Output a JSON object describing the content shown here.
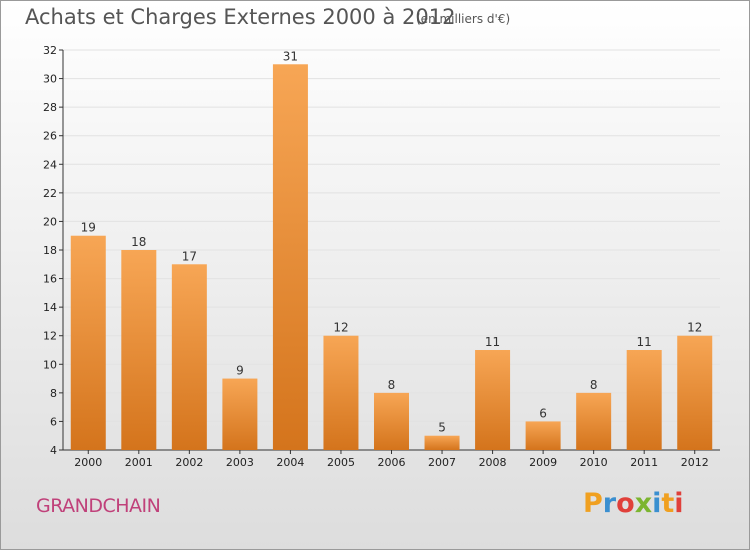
{
  "header": {
    "title": "Achats et Charges Externes 2000 à 2012",
    "unit": "(en milliers d'€)"
  },
  "footer": {
    "city": "GRANDCHAIN",
    "logo": [
      "P",
      "r",
      "o",
      "x",
      "i",
      "t",
      "i"
    ],
    "logo_colors": [
      "#f0a020",
      "#3a8fd0",
      "#e0403a",
      "#7cb530",
      "#3a8fd0",
      "#f0a020",
      "#e0403a"
    ]
  },
  "chart_data": {
    "type": "bar",
    "title": "Achats et Charges Externes 2000 à 2012",
    "categories": [
      "2000",
      "2001",
      "2002",
      "2003",
      "2004",
      "2005",
      "2006",
      "2007",
      "2008",
      "2009",
      "2010",
      "2011",
      "2012"
    ],
    "values": [
      19,
      18,
      17,
      9,
      31,
      12,
      8,
      5,
      11,
      6,
      8,
      11,
      12
    ],
    "ylim": [
      4,
      32
    ],
    "yticks": [
      4,
      6,
      8,
      10,
      12,
      14,
      16,
      18,
      20,
      22,
      24,
      26,
      28,
      30,
      32
    ],
    "grid": true,
    "bar_color_top": "#f7a655",
    "bar_color_bottom": "#d4741c"
  }
}
